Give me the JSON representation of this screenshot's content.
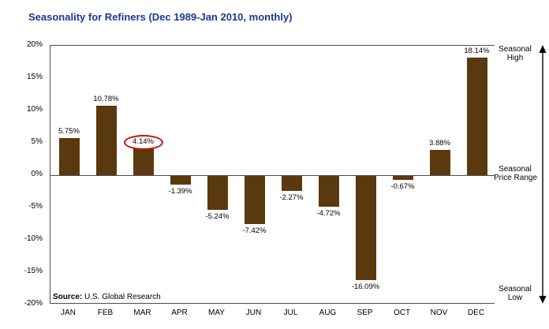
{
  "title": "Seasonality for Refiners (Dec 1989-Jan 2010, monthly)",
  "source": {
    "label": "Source:",
    "text": "U.S. Global Research"
  },
  "annotations": {
    "high": [
      "Seasonal",
      "High"
    ],
    "mid": [
      "Seasonal",
      "Price Range"
    ],
    "low": [
      "Seasonal",
      "Low"
    ]
  },
  "colors": {
    "title": "#1a3a94",
    "bar": "#5b390f",
    "highlight": "#cc1111",
    "axis": "#4d4d4d"
  },
  "chart_data": {
    "type": "bar",
    "title": "Seasonality for Refiners (Dec 1989-Jan 2010, monthly)",
    "categories": [
      "JAN",
      "FEB",
      "MAR",
      "APR",
      "MAY",
      "JUN",
      "JUL",
      "AUG",
      "SEP",
      "OCT",
      "NOV",
      "DEC"
    ],
    "values": [
      5.75,
      10.78,
      4.14,
      -1.39,
      -5.24,
      -7.42,
      -2.27,
      -4.72,
      -16.09,
      -0.67,
      3.88,
      18.14
    ],
    "labels": [
      "5.75%",
      "10.78%",
      "4.14%",
      "-1.39%",
      "-5.24%",
      "-7.42%",
      "-2.27%",
      "-4.72%",
      "-16.09%",
      "-0.67%",
      "3.88%",
      "18.14%"
    ],
    "highlight_index": 2,
    "xlabel": "",
    "ylabel": "",
    "ylim": [
      -20,
      20
    ],
    "ytick_step": 5,
    "ytick_labels": [
      "20%",
      "15%",
      "10%",
      "5%",
      "0%",
      "-5%",
      "-10%",
      "-15%",
      "-20%"
    ],
    "grid": false,
    "legend": "none",
    "bar_color": "#5b390f"
  }
}
